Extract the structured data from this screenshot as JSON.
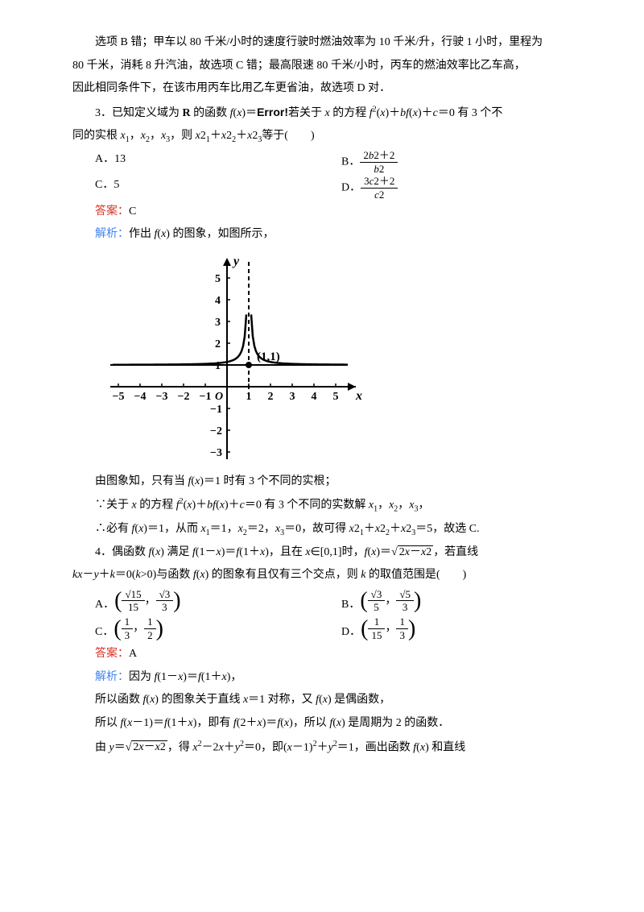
{
  "intro": {
    "line1": "选项 B 错；甲车以 80 千米/小时的速度行驶时燃油效率为 10 千米/升，行驶 1 小时，里程为",
    "line2": "80 千米，消耗 8 升汽油，故选项 C 错；最高限速 80 千米/小时，丙车的燃油效率比乙车高，",
    "line3": "因此相同条件下，在该市用丙车比用乙车更省油，故选项 D 对．"
  },
  "q3": {
    "prompt_before": "3．已知定义域为 ",
    "prompt_R": "R",
    "prompt_mid1": " 的函数 ",
    "prompt_fx": "f",
    "prompt_x": "x",
    "prompt_eq": "＝",
    "prompt_error": "Error!",
    "prompt_after1": "若关于 ",
    "prompt_after2": " 的方程 ",
    "prompt_eq_part": "＝0 有 3 个不",
    "line2_before": "同的实根 ",
    "line2_after": "，则 ",
    "line2_end": "等于(　　)",
    "choiceA": "A．13",
    "choiceB_label": "B．",
    "choiceB_num": "2b2＋2",
    "choiceB_den": "b2",
    "choiceC": "C．5",
    "choiceD_label": "D．",
    "choiceD_num": "3c2＋2",
    "choiceD_den": "c2",
    "answer_label": "答案：",
    "answer": "C",
    "explain_label": "解析：",
    "explain1": "作出 ",
    "explain1_end": " 的图象，如图所示，",
    "graph": {
      "x_axis_label": "x",
      "y_axis_label": "y",
      "x_ticks": [
        -5,
        -4,
        -3,
        -2,
        -1,
        1,
        2,
        3,
        4,
        5
      ],
      "y_ticks_pos": [
        1,
        2,
        3,
        4,
        5
      ],
      "y_ticks_neg": [
        -1,
        -2,
        -3
      ],
      "origin_label": "O",
      "point_label": "(1,1)",
      "point_x": 1,
      "point_y": 1,
      "colors": {
        "axis": "#000000",
        "curve": "#000000",
        "dashed": "#000000",
        "point_fill": "#000000"
      }
    },
    "post1": "由图象知，只有当 ",
    "post1_mid": "＝1 时有 3 个不同的实根；",
    "post2_before": "∵关于 ",
    "post2_mid": " 的方程 ",
    "post2_end": "＝0 有 3 个不同的实数解 ",
    "post3_before": "∴必有 ",
    "post3_mid": "＝1，从而 ",
    "post3_vals": "＝1，",
    "post3_v2": "＝2，",
    "post3_v3": "＝0，故可得 ",
    "post3_end": "＝5，故选 C."
  },
  "q4": {
    "prompt1": "4．偶函数 ",
    "prompt2": " 满足 ",
    "prompt3": "，且在 ",
    "prompt4": "∈[0,1]时，",
    "prompt5": "，若直线",
    "line2_before": "",
    "line2_eq": "＝0(",
    "line2_cond": ">0)与函数 ",
    "line2_end": " 的图象有且仅有三个交点，则 ",
    "line2_final": " 的取值范围是(　　)",
    "choiceA_label": "A．",
    "choiceA_n1_num": "15",
    "choiceA_n1_den": "15",
    "choiceA_n2_num": "3",
    "choiceA_n2_den": "3",
    "choiceB_label": "B．",
    "choiceB_n1_num": "3",
    "choiceB_n1_den": "5",
    "choiceB_n2_num": "5",
    "choiceB_n2_den": "3",
    "choiceC_label": "C．",
    "choiceC_n1": "1",
    "choiceC_d1": "3",
    "choiceC_n2": "1",
    "choiceC_d2": "2",
    "choiceD_label": "D．",
    "choiceD_n1": "1",
    "choiceD_d1": "15",
    "choiceD_n2": "1",
    "choiceD_d2": "3",
    "answer_label": "答案：",
    "answer": "A",
    "explain_label": "解析：",
    "explain1_before": "因为 ",
    "explain1_end": "，",
    "explain2_before": "所以函数 ",
    "explain2_mid": " 的图象关于直线 ",
    "explain2_mid2": "＝1 对称，又 ",
    "explain2_end": " 是偶函数，",
    "explain3_before": "所以 ",
    "explain3_mid": "，即有 ",
    "explain3_mid2": "，所以 ",
    "explain3_end": " 是周期为 2 的函数．",
    "explain4_before": "由 ",
    "explain4_mid": "，得 ",
    "explain4_mid2": "＝0，即(",
    "explain4_mid3": "＝1，画出函数 ",
    "explain4_end": " 和直线"
  }
}
